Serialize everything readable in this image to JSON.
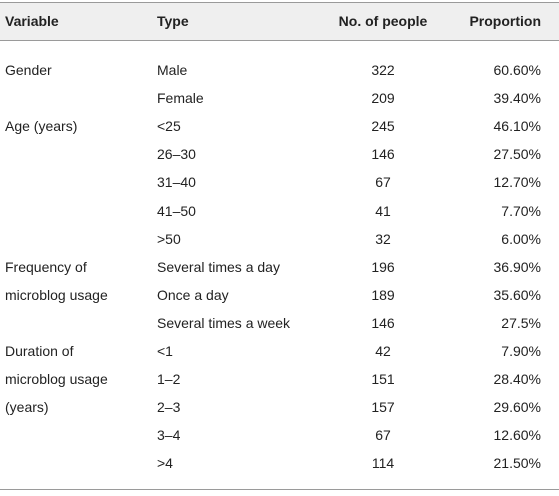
{
  "table": {
    "header": [
      "Variable",
      "Type",
      "No. of people",
      "Proportion"
    ],
    "rows": [
      [
        "Gender",
        "Male",
        "322",
        "60.60%"
      ],
      [
        null,
        "Female",
        "209",
        "39.40%"
      ],
      [
        "Age (years)",
        "<25",
        "245",
        "46.10%"
      ],
      [
        null,
        "26–30",
        "146",
        "27.50%"
      ],
      [
        null,
        "31–40",
        "67",
        "12.70%"
      ],
      [
        null,
        "41–50",
        "41",
        "7.70%"
      ],
      [
        null,
        ">50",
        "32",
        "6.00%"
      ],
      [
        "Frequency of",
        "Several times a day",
        "196",
        "36.90%"
      ],
      [
        "microblog usage",
        "Once a day",
        "189",
        "35.60%"
      ],
      [
        null,
        "Several times a week",
        "146",
        "27.5%"
      ],
      [
        "Duration of",
        "<1",
        "42",
        "7.90%"
      ],
      [
        "microblog usage",
        "1–2",
        "151",
        "28.40%"
      ],
      [
        "(years)",
        "2–3",
        "157",
        "29.60%"
      ],
      [
        null,
        "3–4",
        "67",
        "12.60%"
      ],
      [
        null,
        ">4",
        "114",
        "21.50%"
      ]
    ]
  }
}
